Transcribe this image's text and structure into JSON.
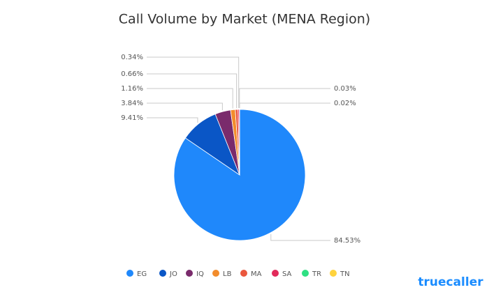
{
  "chart_data": {
    "type": "pie",
    "title": "Call Volume by Market (MENA Region)",
    "categories": [
      "EG",
      "JO",
      "IQ",
      "LB",
      "MA",
      "SA",
      "TR",
      "TN"
    ],
    "values": [
      84.53,
      9.41,
      3.84,
      1.16,
      0.66,
      0.34,
      0.03,
      0.02
    ],
    "value_labels": [
      "84.53%",
      "9.41%",
      "3.84%",
      "1.16%",
      "0.66%",
      "0.34%",
      "0.03%",
      "0.02%"
    ],
    "colors": [
      "#1f88fb",
      "#0a56c6",
      "#7a2b6c",
      "#f28c2c",
      "#ea573d",
      "#e22a5b",
      "#2fe083",
      "#ffd33d"
    ],
    "legend": "bottom"
  },
  "brand": "truecaller"
}
